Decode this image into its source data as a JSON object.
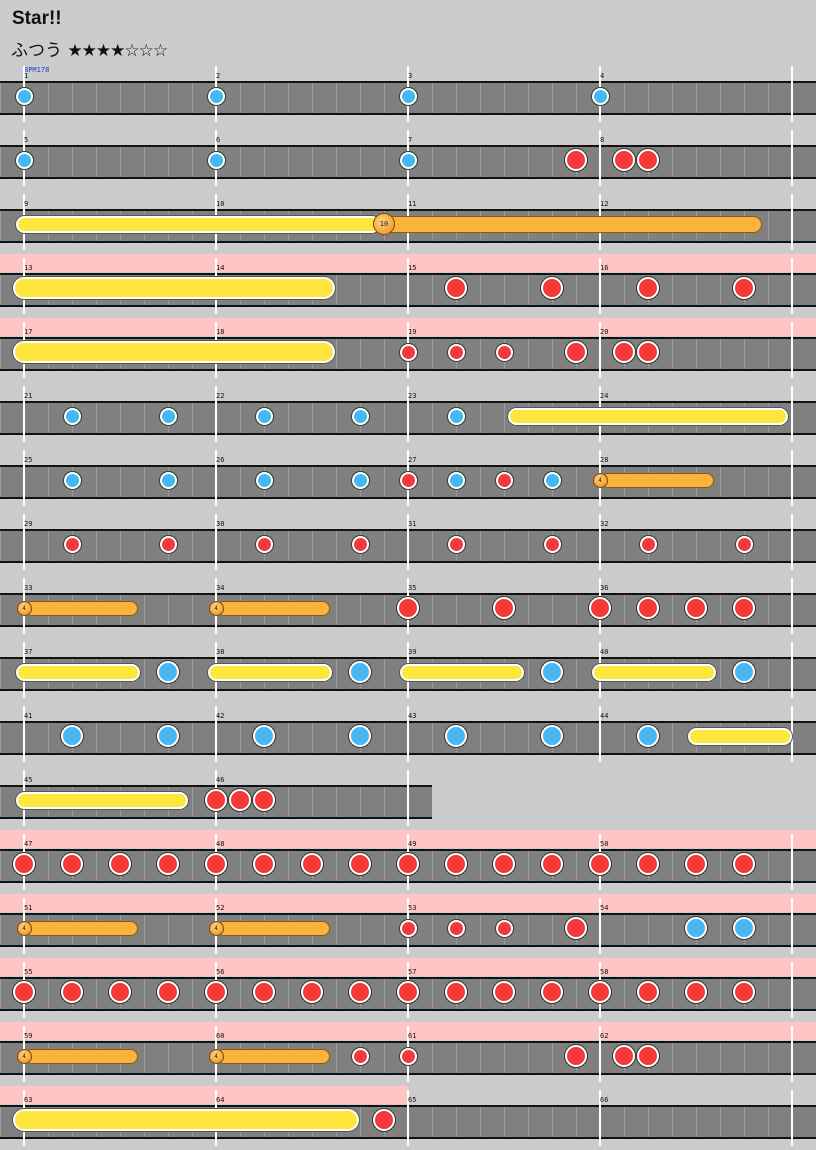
{
  "header": {
    "title": "Star!!",
    "difficulty": "ふつう",
    "stars": "★★★★☆☆☆"
  },
  "bpm_label": "BPM178",
  "colors": {
    "don": "#f23a3a",
    "ka": "#44b8f0",
    "drumroll": "#ffe63c",
    "balloon": "#f8b43c",
    "gogo": "#ffc4c4",
    "background": "#cccccc"
  },
  "measure_numbers": [
    "1",
    "2",
    "3",
    "4",
    "5",
    "6",
    "7",
    "8",
    "9",
    "10",
    "11",
    "12",
    "13",
    "14",
    "15",
    "16",
    "17",
    "18",
    "19",
    "20",
    "21",
    "22",
    "23",
    "24",
    "25",
    "26",
    "27",
    "28",
    "29",
    "30",
    "31",
    "32",
    "33",
    "34",
    "35",
    "36",
    "37",
    "38",
    "39",
    "40",
    "41",
    "42",
    "43",
    "44",
    "45",
    "46",
    "47",
    "48",
    "49",
    "50",
    "51",
    "52",
    "53",
    "54",
    "55",
    "56",
    "57",
    "58",
    "59",
    "60",
    "61",
    "62",
    "63",
    "64",
    "65",
    "66"
  ],
  "balloon_counts": {
    "b10": "10",
    "b4": "4"
  },
  "chart_data": {
    "type": "table",
    "bpm": 178,
    "measures_per_row": 4,
    "beats_per_measure": 8,
    "legend": {
      "d": "don (small)",
      "D": "don (big)",
      "k": "ka (small)",
      "K": "ka (big)",
      "roll": "drumroll",
      "balloon": "balloon"
    },
    "rows": [
      {
        "measures": [
          1,
          2,
          3,
          4
        ],
        "gogo": false,
        "notes": [
          [
            "k",
            0
          ],
          [
            "k",
            8
          ],
          [
            "k",
            16
          ],
          [
            "k",
            24
          ]
        ]
      },
      {
        "measures": [
          5,
          6,
          7,
          8
        ],
        "gogo": false,
        "notes": [
          [
            "k",
            0
          ],
          [
            "k",
            8
          ],
          [
            "k",
            16
          ],
          [
            "D",
            23
          ],
          [
            "D",
            25
          ],
          [
            "D",
            26
          ]
        ]
      },
      {
        "measures": [
          9,
          10,
          11,
          12
        ],
        "gogo": false,
        "rolls": [
          [
            "roll",
            0,
            14.5
          ]
        ],
        "balloons": [
          [
            "10",
            15,
            30.5
          ]
        ]
      },
      {
        "measures": [
          13,
          14,
          15,
          16
        ],
        "gogo": true,
        "rolls": [
          [
            "bigroll",
            0,
            12.5
          ]
        ],
        "notes": [
          [
            "D",
            18
          ],
          [
            "D",
            22
          ],
          [
            "D",
            26
          ],
          [
            "D",
            30
          ]
        ]
      },
      {
        "measures": [
          17,
          18,
          19,
          20
        ],
        "gogo": true,
        "rolls": [
          [
            "bigroll",
            0,
            12.5
          ]
        ],
        "notes": [
          [
            "d",
            16
          ],
          [
            "d",
            18
          ],
          [
            "d",
            20
          ],
          [
            "D",
            23
          ],
          [
            "D",
            25
          ],
          [
            "D",
            26
          ]
        ]
      },
      {
        "measures": [
          21,
          22,
          23,
          24
        ],
        "gogo": false,
        "notes": [
          [
            "k",
            2
          ],
          [
            "k",
            6
          ],
          [
            "k",
            10
          ],
          [
            "k",
            14
          ],
          [
            "k",
            18
          ]
        ],
        "rolls": [
          [
            "roll",
            20.5,
            31.5
          ]
        ]
      },
      {
        "measures": [
          25,
          26,
          27,
          28
        ],
        "gogo": false,
        "notes": [
          [
            "k",
            2
          ],
          [
            "k",
            6
          ],
          [
            "k",
            10
          ],
          [
            "k",
            14
          ],
          [
            "d",
            16
          ],
          [
            "k",
            18
          ],
          [
            "d",
            20
          ],
          [
            "k",
            22
          ]
        ],
        "balloons": [
          [
            "4",
            24,
            28.5
          ]
        ]
      },
      {
        "measures": [
          29,
          30,
          31,
          32
        ],
        "gogo": false,
        "notes": [
          [
            "d",
            2
          ],
          [
            "d",
            6
          ],
          [
            "d",
            10
          ],
          [
            "d",
            14
          ],
          [
            "d",
            18
          ],
          [
            "d",
            22
          ],
          [
            "d",
            26
          ],
          [
            "d",
            30
          ]
        ]
      },
      {
        "measures": [
          33,
          34,
          35,
          36
        ],
        "gogo": false,
        "balloons": [
          [
            "4",
            0,
            4.5
          ],
          [
            "4",
            8,
            12.5
          ]
        ],
        "notes": [
          [
            "D",
            16
          ],
          [
            "D",
            20
          ],
          [
            "D",
            24
          ],
          [
            "D",
            26
          ],
          [
            "D",
            28
          ],
          [
            "D",
            30
          ]
        ]
      },
      {
        "measures": [
          37,
          38,
          39,
          40
        ],
        "gogo": false,
        "rolls": [
          [
            "roll",
            0,
            4.5
          ],
          [
            "roll",
            8,
            12.5
          ],
          [
            "roll",
            16,
            20.5
          ],
          [
            "roll",
            24,
            28.5
          ]
        ],
        "notes": [
          [
            "K",
            6
          ],
          [
            "K",
            14
          ],
          [
            "K",
            22
          ],
          [
            "K",
            30
          ]
        ]
      },
      {
        "measures": [
          41,
          42,
          43,
          44
        ],
        "gogo": false,
        "notes": [
          [
            "K",
            2
          ],
          [
            "K",
            6
          ],
          [
            "K",
            10
          ],
          [
            "K",
            14
          ],
          [
            "K",
            18
          ],
          [
            "K",
            22
          ],
          [
            "K",
            26
          ]
        ],
        "rolls": [
          [
            "roll",
            28,
            32
          ]
        ]
      },
      {
        "measures": [
          45,
          46
        ],
        "gogo": false,
        "rolls": [
          [
            "roll",
            0,
            6.5
          ]
        ],
        "notes": [
          [
            "D",
            8
          ],
          [
            "D",
            9
          ],
          [
            "D",
            10
          ]
        ]
      },
      {
        "measures": [
          47,
          48,
          49,
          50
        ],
        "gogo": true,
        "notes": [
          [
            "D",
            0
          ],
          [
            "D",
            2
          ],
          [
            "D",
            4
          ],
          [
            "D",
            6
          ],
          [
            "D",
            8
          ],
          [
            "D",
            10
          ],
          [
            "D",
            12
          ],
          [
            "D",
            14
          ],
          [
            "D",
            16
          ],
          [
            "D",
            18
          ],
          [
            "D",
            20
          ],
          [
            "D",
            22
          ],
          [
            "D",
            24
          ],
          [
            "D",
            26
          ],
          [
            "D",
            28
          ],
          [
            "D",
            30
          ]
        ]
      },
      {
        "measures": [
          51,
          52,
          53,
          54
        ],
        "gogo": true,
        "balloons": [
          [
            "4",
            0,
            4.5
          ],
          [
            "4",
            8,
            12.5
          ]
        ],
        "notes": [
          [
            "d",
            16
          ],
          [
            "d",
            18
          ],
          [
            "d",
            20
          ],
          [
            "D",
            23
          ],
          [
            "K",
            28
          ],
          [
            "K",
            30
          ]
        ]
      },
      {
        "measures": [
          55,
          56,
          57,
          58
        ],
        "gogo": true,
        "notes": [
          [
            "D",
            0
          ],
          [
            "D",
            2
          ],
          [
            "D",
            4
          ],
          [
            "D",
            6
          ],
          [
            "D",
            8
          ],
          [
            "D",
            10
          ],
          [
            "D",
            12
          ],
          [
            "D",
            14
          ],
          [
            "D",
            16
          ],
          [
            "D",
            18
          ],
          [
            "D",
            20
          ],
          [
            "D",
            22
          ],
          [
            "D",
            24
          ],
          [
            "D",
            26
          ],
          [
            "D",
            28
          ],
          [
            "D",
            30
          ]
        ]
      },
      {
        "measures": [
          59,
          60,
          61,
          62
        ],
        "gogo": true,
        "balloons": [
          [
            "4",
            0,
            4.5
          ],
          [
            "4",
            8,
            12.5
          ]
        ],
        "notes": [
          [
            "d",
            14
          ],
          [
            "d",
            16
          ],
          [
            "D",
            23
          ],
          [
            "D",
            25
          ],
          [
            "D",
            26
          ]
        ]
      },
      {
        "measures": [
          63,
          64,
          65,
          66
        ],
        "gogo": true,
        "rolls": [
          [
            "bigroll",
            0,
            13.5
          ]
        ],
        "notes": [
          [
            "D",
            15
          ]
        ]
      }
    ]
  }
}
